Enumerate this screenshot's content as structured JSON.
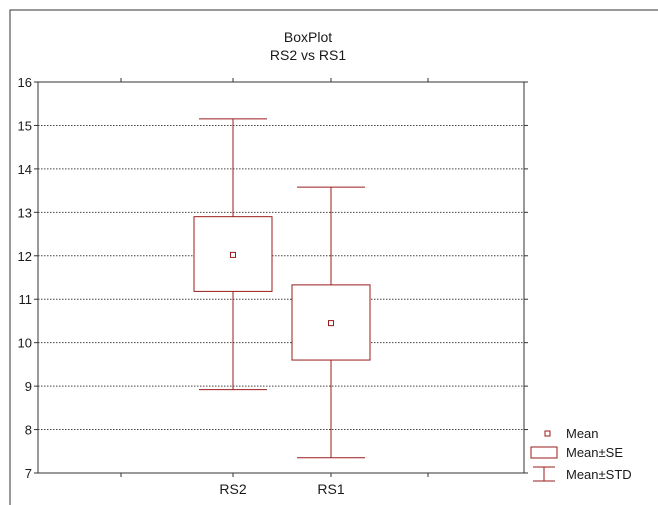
{
  "chart_data": {
    "type": "boxplot",
    "title": "BoxPlot",
    "subtitle": "RS2 vs RS1",
    "xlabel": "",
    "ylabel": "",
    "ylim": [
      7,
      16
    ],
    "yticks": [
      7,
      8,
      9,
      10,
      11,
      12,
      13,
      14,
      15,
      16
    ],
    "grid": true,
    "legend_position": "bottom-right",
    "color": "#9b1b1b",
    "categories": [
      "RS2",
      "RS1"
    ],
    "boxes": [
      {
        "category": "RS2",
        "mean": 12.02,
        "se_low": 11.18,
        "se_high": 12.9,
        "std_low": 8.92,
        "std_high": 15.15
      },
      {
        "category": "RS1",
        "mean": 10.45,
        "se_low": 9.6,
        "se_high": 11.33,
        "std_low": 7.35,
        "std_high": 13.58
      }
    ],
    "legend": [
      {
        "symbol": "mean-marker",
        "label": "Mean"
      },
      {
        "symbol": "se-box",
        "label": "Mean±SE"
      },
      {
        "symbol": "std-whisker",
        "label": "Mean±STD"
      }
    ]
  }
}
